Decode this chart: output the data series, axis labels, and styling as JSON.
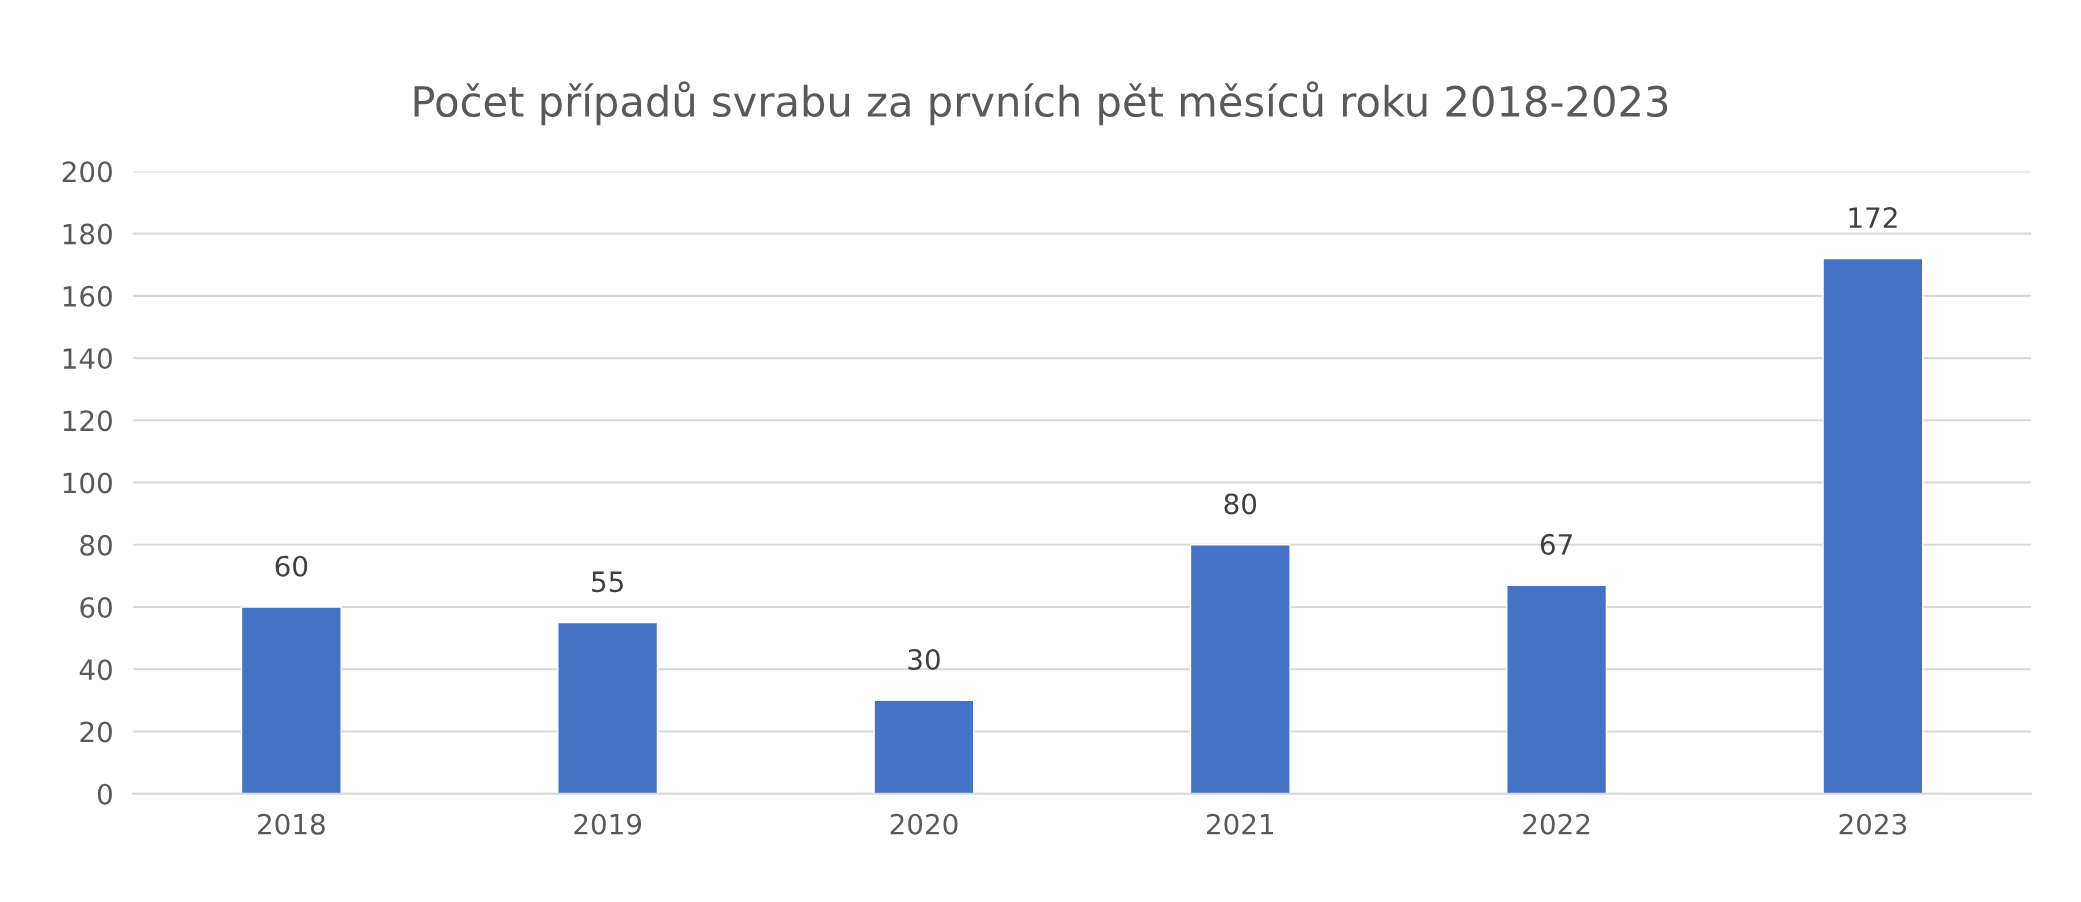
{
  "chart_data": {
    "type": "bar",
    "title": "Počet případů svrabu za prvních pět měsíců roku 2018-2023",
    "categories": [
      "2018",
      "2019",
      "2020",
      "2021",
      "2022",
      "2023"
    ],
    "values": [
      60,
      55,
      30,
      80,
      67,
      172
    ],
    "color": "#4472c4",
    "ylim": [
      0,
      200
    ],
    "yticks": [
      0,
      20,
      40,
      60,
      80,
      100,
      120,
      140,
      160,
      180,
      200
    ],
    "grid": "y",
    "data_labels": true,
    "legend": false
  }
}
